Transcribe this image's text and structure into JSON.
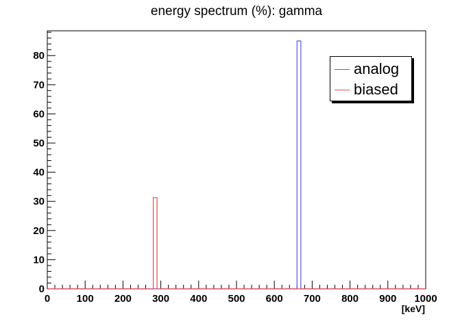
{
  "chart_data": {
    "type": "bar",
    "title": "energy spectrum (%): gamma",
    "xlabel": "[keV]",
    "ylabel": "",
    "xlim": [
      0,
      1000
    ],
    "ylim": [
      0,
      88.5
    ],
    "x_ticks": [
      0,
      100,
      200,
      300,
      400,
      500,
      600,
      700,
      800,
      900,
      1000
    ],
    "y_ticks": [
      0,
      10,
      20,
      30,
      40,
      50,
      60,
      70,
      80
    ],
    "bin_width": 10,
    "grid": false,
    "legend_position": "top-right",
    "series": [
      {
        "name": "analog",
        "color": "#5a5adc",
        "bins": [
          {
            "x0": 660,
            "x1": 670,
            "value": 85
          }
        ]
      },
      {
        "name": "biased",
        "color": "#e84c4c",
        "bins": [
          {
            "x0": 280,
            "x1": 290,
            "value": 31.3
          }
        ]
      }
    ]
  }
}
